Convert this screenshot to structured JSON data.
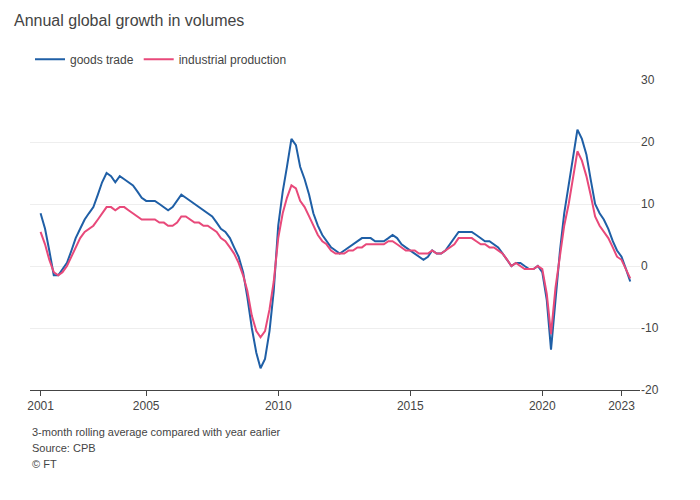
{
  "chart_data": {
    "type": "line",
    "title": "Annual global growth in volumes",
    "annotations": [
      "3-month rolling average compared with year earlier",
      "Source: CPB",
      "© FT"
    ],
    "xlim": [
      2000.6,
      2023.7
    ],
    "xticks": [
      2001,
      2005,
      2010,
      2015,
      2020,
      2023
    ],
    "ylim": [
      -20,
      30
    ],
    "yticks": [
      -20,
      -10,
      0,
      10,
      20,
      30
    ],
    "grid": "y",
    "legend": "upper left",
    "x": [
      2001.0,
      2001.17,
      2001.33,
      2001.5,
      2001.67,
      2001.83,
      2002.0,
      2002.17,
      2002.33,
      2002.5,
      2002.67,
      2002.83,
      2003.0,
      2003.17,
      2003.33,
      2003.5,
      2003.67,
      2003.83,
      2004.0,
      2004.17,
      2004.33,
      2004.5,
      2004.67,
      2004.83,
      2005.0,
      2005.17,
      2005.33,
      2005.5,
      2005.67,
      2005.83,
      2006.0,
      2006.17,
      2006.33,
      2006.5,
      2006.67,
      2006.83,
      2007.0,
      2007.17,
      2007.33,
      2007.5,
      2007.67,
      2007.83,
      2008.0,
      2008.17,
      2008.33,
      2008.5,
      2008.67,
      2008.83,
      2009.0,
      2009.17,
      2009.33,
      2009.5,
      2009.67,
      2009.83,
      2010.0,
      2010.17,
      2010.33,
      2010.5,
      2010.67,
      2010.83,
      2011.0,
      2011.17,
      2011.33,
      2011.5,
      2011.67,
      2011.83,
      2012.0,
      2012.17,
      2012.33,
      2012.5,
      2012.67,
      2012.83,
      2013.0,
      2013.17,
      2013.33,
      2013.5,
      2013.67,
      2013.83,
      2014.0,
      2014.17,
      2014.33,
      2014.5,
      2014.67,
      2014.83,
      2015.0,
      2015.17,
      2015.33,
      2015.5,
      2015.67,
      2015.83,
      2016.0,
      2016.17,
      2016.33,
      2016.5,
      2016.67,
      2016.83,
      2017.0,
      2017.17,
      2017.33,
      2017.5,
      2017.67,
      2017.83,
      2018.0,
      2018.17,
      2018.33,
      2018.5,
      2018.67,
      2018.83,
      2019.0,
      2019.17,
      2019.33,
      2019.5,
      2019.67,
      2019.83,
      2020.0,
      2020.17,
      2020.33,
      2020.5,
      2020.67,
      2020.83,
      2021.0,
      2021.17,
      2021.33,
      2021.5,
      2021.67,
      2021.83,
      2022.0,
      2022.17,
      2022.33,
      2022.5,
      2022.67,
      2022.83,
      2023.0,
      2023.17,
      2023.33
    ],
    "series": [
      {
        "name": "goods trade",
        "color": "#1f5fa6",
        "values": [
          8.5,
          6.0,
          2.5,
          -1.5,
          -1.5,
          -0.5,
          0.5,
          2.5,
          4.5,
          6.0,
          7.5,
          8.5,
          9.5,
          11.5,
          13.5,
          15.0,
          14.5,
          13.5,
          14.5,
          14.0,
          13.5,
          13.0,
          12.0,
          11.0,
          10.5,
          10.5,
          10.5,
          10.0,
          9.5,
          9.0,
          9.5,
          10.5,
          11.5,
          11.0,
          10.5,
          10.0,
          9.5,
          9.0,
          8.5,
          8.0,
          7.0,
          6.0,
          5.5,
          4.5,
          3.0,
          1.5,
          -1.0,
          -5.0,
          -10.0,
          -14.0,
          -16.5,
          -15.0,
          -10.5,
          -4.0,
          6.5,
          12.0,
          16.0,
          20.5,
          19.5,
          16.0,
          14.0,
          11.5,
          8.5,
          6.5,
          5.0,
          4.0,
          3.0,
          2.5,
          2.0,
          2.5,
          3.0,
          3.5,
          4.0,
          4.5,
          4.5,
          4.5,
          4.0,
          4.0,
          4.0,
          4.5,
          5.0,
          4.5,
          3.5,
          3.0,
          2.5,
          2.0,
          1.5,
          1.0,
          1.5,
          2.5,
          2.0,
          2.0,
          2.5,
          3.5,
          4.5,
          5.5,
          5.5,
          5.5,
          5.5,
          5.0,
          4.5,
          4.0,
          4.0,
          3.5,
          3.0,
          2.0,
          1.0,
          0.0,
          0.5,
          0.5,
          0.0,
          -0.5,
          -0.5,
          0.0,
          -1.0,
          -5.5,
          -13.5,
          -5.0,
          2.5,
          8.5,
          13.0,
          17.5,
          22.0,
          20.5,
          18.0,
          14.0,
          10.0,
          8.5,
          7.5,
          6.0,
          4.0,
          2.5,
          1.5,
          -0.5,
          -2.5
        ]
      },
      {
        "name": "industrial production",
        "color": "#e8497a",
        "values": [
          5.5,
          3.5,
          1.0,
          -1.0,
          -1.5,
          -1.0,
          0.0,
          1.5,
          3.0,
          4.5,
          5.5,
          6.0,
          6.5,
          7.5,
          8.5,
          9.5,
          9.5,
          9.0,
          9.5,
          9.5,
          9.0,
          8.5,
          8.0,
          7.5,
          7.5,
          7.5,
          7.5,
          7.0,
          7.0,
          6.5,
          6.5,
          7.0,
          8.0,
          8.0,
          7.5,
          7.0,
          7.0,
          6.5,
          6.5,
          6.0,
          5.5,
          4.5,
          4.0,
          3.0,
          2.0,
          0.5,
          -1.5,
          -4.0,
          -8.0,
          -10.5,
          -11.5,
          -10.5,
          -7.0,
          -2.5,
          4.5,
          8.5,
          11.0,
          13.0,
          12.5,
          10.5,
          9.5,
          8.0,
          6.5,
          5.0,
          4.0,
          3.5,
          2.5,
          2.0,
          2.0,
          2.0,
          2.5,
          2.5,
          3.0,
          3.0,
          3.5,
          3.5,
          3.5,
          3.5,
          3.5,
          4.0,
          4.0,
          3.5,
          3.0,
          2.5,
          2.5,
          2.5,
          2.0,
          2.0,
          2.0,
          2.5,
          2.0,
          2.0,
          2.5,
          3.0,
          3.5,
          4.5,
          4.5,
          4.5,
          4.5,
          4.0,
          3.5,
          3.5,
          3.0,
          3.0,
          2.5,
          2.0,
          1.0,
          0.0,
          0.5,
          0.0,
          -0.5,
          -0.5,
          -0.5,
          0.0,
          -0.5,
          -4.5,
          -11.0,
          -3.5,
          2.0,
          6.5,
          10.0,
          14.5,
          18.5,
          17.0,
          14.5,
          11.5,
          8.0,
          6.5,
          5.5,
          4.5,
          3.0,
          1.5,
          1.0,
          -0.5,
          -2.0
        ]
      }
    ]
  }
}
